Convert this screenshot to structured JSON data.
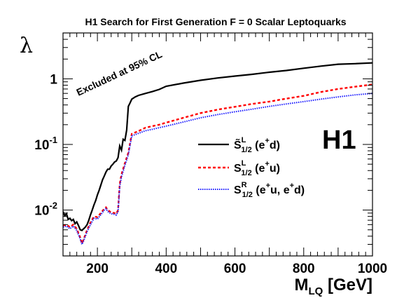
{
  "chart_data": {
    "type": "line",
    "title": "H1 Search for First Generation F = 0 Scalar Leptoquarks",
    "xlabel": {
      "main": "M",
      "sub": "LQ",
      "unit": " [GeV]"
    },
    "ylabel": "λ",
    "xlim": [
      100,
      1000
    ],
    "ylim": [
      0.002,
      5
    ],
    "y_scale": "log",
    "x_ticks": [
      "200",
      "400",
      "600",
      "800",
      "1000"
    ],
    "y_ticks": [
      {
        "base": "10",
        "exp": "-2",
        "value": 0.01
      },
      {
        "base": "10",
        "exp": "-1",
        "value": 0.1
      },
      {
        "base": "1",
        "exp": "",
        "value": 1
      }
    ],
    "annotation": "Excluded at 95% CL",
    "logo": "H1",
    "legend_position": "middle-right",
    "series": [
      {
        "legend": {
          "main": "S̃",
          "sub": "1/2",
          "sup": "L",
          "rest": " (e",
          "rest_sup": "+",
          "rest2": "d)"
        },
        "color": "#000000",
        "style": "solid",
        "x": [
          100,
          105,
          110,
          115,
          120,
          125,
          130,
          135,
          140,
          145,
          150,
          155,
          160,
          165,
          170,
          175,
          180,
          185,
          190,
          195,
          200,
          205,
          210,
          215,
          220,
          225,
          230,
          235,
          240,
          245,
          250,
          255,
          260,
          265,
          270,
          275,
          280,
          285,
          290,
          295,
          300,
          310,
          320,
          340,
          360,
          380,
          400,
          450,
          500,
          550,
          600,
          650,
          700,
          750,
          800,
          850,
          900,
          950,
          1000
        ],
        "y": [
          0.0095,
          0.0082,
          0.0088,
          0.0072,
          0.0075,
          0.0069,
          0.0072,
          0.0062,
          0.0066,
          0.0058,
          0.005,
          0.0049,
          0.0052,
          0.0055,
          0.006,
          0.007,
          0.0085,
          0.01,
          0.012,
          0.014,
          0.017,
          0.02,
          0.024,
          0.029,
          0.033,
          0.038,
          0.042,
          0.042,
          0.047,
          0.05,
          0.054,
          0.056,
          0.063,
          0.095,
          0.082,
          0.12,
          0.115,
          0.165,
          0.38,
          0.43,
          0.49,
          0.53,
          0.56,
          0.6,
          0.64,
          0.69,
          0.77,
          0.86,
          0.95,
          1.03,
          1.1,
          1.17,
          1.26,
          1.34,
          1.45,
          1.56,
          1.67,
          1.7,
          1.75
        ]
      },
      {
        "legend": {
          "main": "S",
          "sub": "1/2",
          "sup": "L",
          "rest": " (e",
          "rest_sup": "+",
          "rest2": "u)"
        },
        "color": "#ff0000",
        "style": "dashed",
        "x": [
          100,
          110,
          120,
          130,
          140,
          150,
          155,
          160,
          165,
          170,
          180,
          190,
          200,
          210,
          220,
          225,
          230,
          240,
          250,
          255,
          260,
          265,
          270,
          280,
          290,
          300,
          320,
          340,
          360,
          380,
          400,
          450,
          500,
          550,
          600,
          650,
          700,
          750,
          800,
          850,
          900,
          950,
          1000
        ],
        "y": [
          0.0058,
          0.006,
          0.0055,
          0.006,
          0.0052,
          0.0038,
          0.0031,
          0.0036,
          0.0042,
          0.005,
          0.0065,
          0.008,
          0.0078,
          0.009,
          0.0105,
          0.011,
          0.01,
          0.0092,
          0.009,
          0.0088,
          0.01,
          0.025,
          0.035,
          0.052,
          0.075,
          0.145,
          0.16,
          0.18,
          0.19,
          0.2,
          0.215,
          0.255,
          0.3,
          0.34,
          0.375,
          0.415,
          0.45,
          0.5,
          0.55,
          0.63,
          0.7,
          0.76,
          0.82
        ]
      },
      {
        "legend": {
          "main": "S",
          "sub": "1/2",
          "sup": "R",
          "rest": " (e",
          "rest_sup": "+",
          "rest2": "u, e",
          "rest2_sup": "+",
          "rest3": "d)"
        },
        "color": "#1a1aff",
        "style": "dotted",
        "x": [
          100,
          110,
          120,
          130,
          140,
          150,
          155,
          160,
          165,
          170,
          180,
          190,
          200,
          210,
          220,
          225,
          230,
          240,
          250,
          255,
          260,
          265,
          270,
          280,
          290,
          300,
          320,
          340,
          360,
          380,
          400,
          450,
          500,
          550,
          600,
          650,
          700,
          750,
          800,
          850,
          900,
          950,
          1000
        ],
        "y": [
          0.0055,
          0.0057,
          0.0052,
          0.0057,
          0.0049,
          0.0036,
          0.003,
          0.0034,
          0.004,
          0.0047,
          0.006,
          0.0075,
          0.0073,
          0.0085,
          0.01,
          0.0105,
          0.0095,
          0.0088,
          0.0086,
          0.0084,
          0.0095,
          0.023,
          0.032,
          0.048,
          0.07,
          0.135,
          0.148,
          0.162,
          0.17,
          0.18,
          0.19,
          0.22,
          0.255,
          0.285,
          0.315,
          0.345,
          0.38,
          0.415,
          0.45,
          0.49,
          0.53,
          0.57,
          0.6
        ]
      }
    ]
  }
}
